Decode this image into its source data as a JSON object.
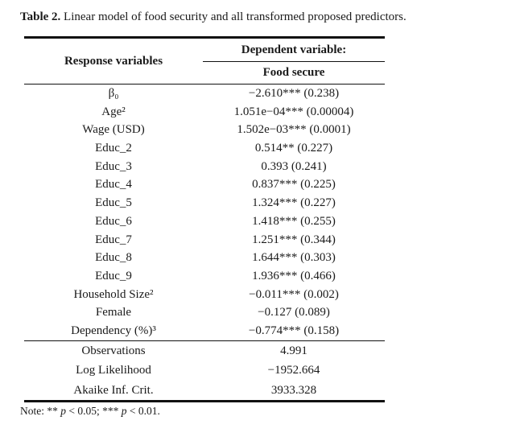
{
  "title": {
    "label": "Table 2.",
    "text": " Linear model of food security and all transformed proposed predictors."
  },
  "table": {
    "header": {
      "response_col": "Response variables",
      "dependent_label": "Dependent variable:",
      "dependent_sub": "Food secure"
    },
    "rows": [
      {
        "label": "β₀",
        "value": "−2.610*** (0.238)"
      },
      {
        "label": "Age²",
        "value": "1.051e−04*** (0.00004)"
      },
      {
        "label": "Wage (USD)",
        "value": "1.502e−03*** (0.0001)"
      },
      {
        "label": "Educ_2",
        "value": "0.514** (0.227)"
      },
      {
        "label": "Educ_3",
        "value": "0.393 (0.241)"
      },
      {
        "label": "Educ_4",
        "value": "0.837*** (0.225)"
      },
      {
        "label": "Educ_5",
        "value": "1.324*** (0.227)"
      },
      {
        "label": "Educ_6",
        "value": "1.418*** (0.255)"
      },
      {
        "label": "Educ_7",
        "value": "1.251*** (0.344)"
      },
      {
        "label": "Educ_8",
        "value": "1.644*** (0.303)"
      },
      {
        "label": "Educ_9",
        "value": "1.936*** (0.466)"
      },
      {
        "label": "Household Size²",
        "value": "−0.011*** (0.002)"
      },
      {
        "label": "Female",
        "value": "−0.127 (0.089)"
      },
      {
        "label": "Dependency (%)³",
        "value": "−0.774*** (0.158)"
      }
    ],
    "summary_rows": [
      {
        "label": "Observations",
        "value": "4.991"
      },
      {
        "label": "Log Likelihood",
        "value": "−1952.664"
      },
      {
        "label": "Akaike Inf. Crit.",
        "value": "3933.328"
      }
    ]
  },
  "note": {
    "prefix": "Note: ** ",
    "p1": "p",
    "mid": " < 0.05; *** ",
    "p2": "p",
    "suffix": " < 0.01."
  },
  "colors": {
    "text": "#1a1a1a",
    "rule": "#111111",
    "background": "#ffffff"
  }
}
